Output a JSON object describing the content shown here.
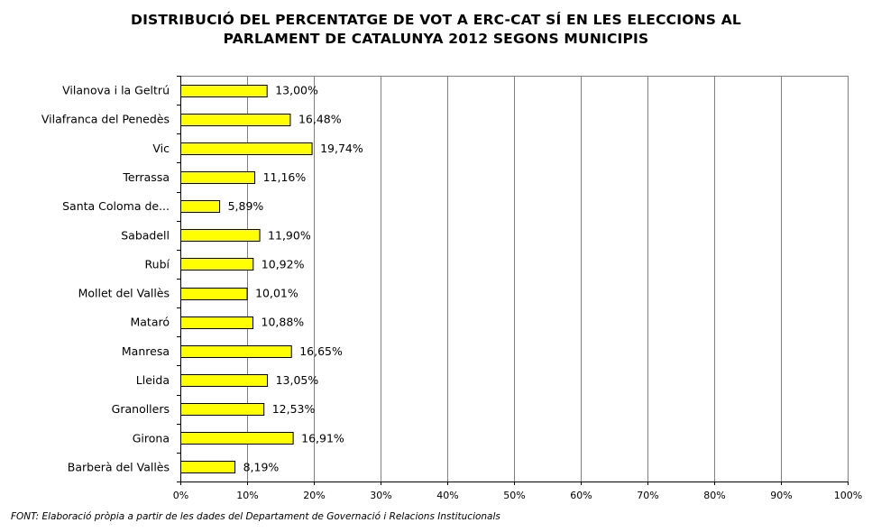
{
  "chart_data": {
    "type": "bar",
    "orientation": "horizontal",
    "title_lines": [
      "DISTRIBUCIÓ DEL PERCENTATGE DE VOT A ERC-CAT SÍ EN LES ELECCIONS AL",
      "PARLAMENT DE CATALUNYA 2012 SEGONS MUNICIPIS"
    ],
    "categories": [
      "Vilanova i la Geltrú",
      "Vilafranca del Penedès",
      "Vic",
      "Terrassa",
      "Santa Coloma de...",
      "Sabadell",
      "Rubí",
      "Mollet del Vallès",
      "Mataró",
      "Manresa",
      "Lleida",
      "Granollers",
      "Girona",
      "Barberà del Vallès"
    ],
    "values": [
      13.0,
      16.48,
      19.74,
      11.16,
      5.89,
      11.9,
      10.92,
      10.01,
      10.88,
      16.65,
      13.05,
      12.53,
      16.91,
      8.19
    ],
    "value_labels": [
      "13,00%",
      "16,48%",
      "19,74%",
      "11,16%",
      "5,89%",
      "11,90%",
      "10,92%",
      "10,01%",
      "10,88%",
      "16,65%",
      "13,05%",
      "12,53%",
      "16,91%",
      "8,19%"
    ],
    "x_ticks": [
      0,
      10,
      20,
      30,
      40,
      50,
      60,
      70,
      80,
      90,
      100
    ],
    "x_tick_labels": [
      "0%",
      "10%",
      "20%",
      "30%",
      "40%",
      "50%",
      "60%",
      "70%",
      "80%",
      "90%",
      "100%"
    ],
    "xlim": [
      0,
      100
    ],
    "xlabel": "",
    "ylabel": "",
    "grid": true,
    "legend": "none",
    "bar_color": "#FFFF00",
    "bar_edge_color": "#000000",
    "grid_color": "#808080"
  },
  "source_note": "FONT: Elaboració pròpia a partir de les dades del Departament de Governació i Relacions Institucionals"
}
